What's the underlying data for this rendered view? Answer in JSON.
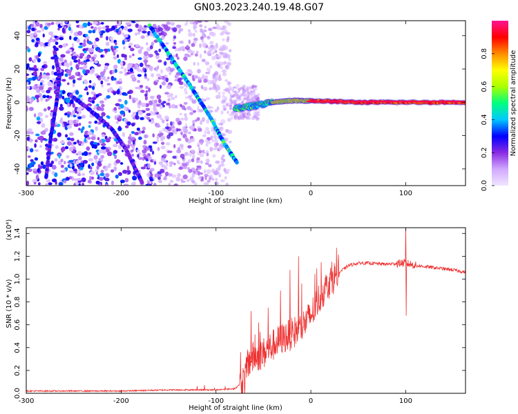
{
  "title": "GN03.2023.240.19.48.G07",
  "chart_data": [
    {
      "type": "heatmap",
      "xlabel": "Height of straight line (km)",
      "ylabel": "Frequency (Hz)",
      "xlim": [
        -300,
        163
      ],
      "ylim": [
        -50,
        49
      ],
      "x_ticks": [
        -300,
        -200,
        -100,
        0,
        100
      ],
      "y_ticks": [
        -40,
        -20,
        0,
        20,
        40
      ],
      "colorbar": {
        "label": "Normalized spectral amplitude",
        "range": [
          0,
          1
        ],
        "ticks": [
          0.0,
          0.2,
          0.4,
          0.6,
          0.8
        ],
        "colors": [
          "#f0e6ff",
          "#d0a8ff",
          "#8a2be2",
          "#0000ff",
          "#00c8ff",
          "#00ff7f",
          "#aaff00",
          "#ffff00",
          "#ff8c00",
          "#ff0000",
          "#ff1493"
        ]
      },
      "features": [
        {
          "name": "descending streak 1",
          "points": [
            [
              -170,
              46
            ],
            [
              -145,
              25
            ],
            [
              -125,
              8
            ],
            [
              -105,
              -10
            ],
            [
              -90,
              -26
            ],
            [
              -78,
              -36
            ]
          ]
        },
        {
          "name": "descending streak 2",
          "points": [
            [
              -255,
              5
            ],
            [
              -230,
              -6
            ],
            [
              -210,
              -16
            ],
            [
              -195,
              -28
            ],
            [
              -185,
              -40
            ],
            [
              -178,
              -48
            ]
          ]
        },
        {
          "name": "steep streak",
          "points": [
            [
              -270,
              30
            ],
            [
              -265,
              15
            ],
            [
              -268,
              0
            ],
            [
              -274,
              -20
            ],
            [
              -279,
              -45
            ]
          ]
        },
        {
          "name": "carrier line",
          "points": [
            [
              -80,
              -4
            ],
            [
              -60,
              -2
            ],
            [
              -40,
              0
            ],
            [
              -20,
              1
            ],
            [
              0,
              1
            ],
            [
              50,
              0
            ],
            [
              100,
              0
            ],
            [
              163,
              0
            ]
          ]
        }
      ]
    },
    {
      "type": "line",
      "xlabel": "Height of straight line (km)",
      "ylabel": "SNR (10 * v/v)",
      "y_multiplier": "(x10⁴)",
      "xlim": [
        -300,
        163
      ],
      "ylim": [
        0,
        1.45
      ],
      "x_ticks": [
        -300,
        -200,
        -100,
        0,
        100
      ],
      "y_ticks": [
        0.0,
        0.2,
        0.4,
        0.6,
        0.8,
        1.0,
        1.2,
        1.4
      ],
      "line_color": "#ee3333",
      "envelope": {
        "x": [
          -300,
          -250,
          -200,
          -150,
          -100,
          -80,
          -70,
          -65,
          -60,
          -50,
          -40,
          -30,
          -20,
          -10,
          0,
          10,
          20,
          30,
          40,
          50,
          60,
          80,
          95,
          100,
          110,
          130,
          150,
          163
        ],
        "y": [
          0.02,
          0.02,
          0.02,
          0.03,
          0.03,
          0.04,
          0.12,
          0.28,
          0.32,
          0.35,
          0.42,
          0.48,
          0.52,
          0.58,
          0.68,
          0.85,
          0.98,
          1.06,
          1.12,
          1.14,
          1.14,
          1.13,
          1.14,
          1.14,
          1.12,
          1.1,
          1.08,
          1.06
        ]
      },
      "spikes": [
        {
          "x": -63,
          "y": 0.72
        },
        {
          "x": -55,
          "y": 0.62
        },
        {
          "x": -45,
          "y": 0.75
        },
        {
          "x": -32,
          "y": 0.9
        },
        {
          "x": -22,
          "y": 1.08
        },
        {
          "x": -13,
          "y": 1.2
        },
        {
          "x": 100,
          "y": 1.46
        },
        {
          "x": 100.5,
          "y": 0.68
        }
      ]
    }
  ]
}
